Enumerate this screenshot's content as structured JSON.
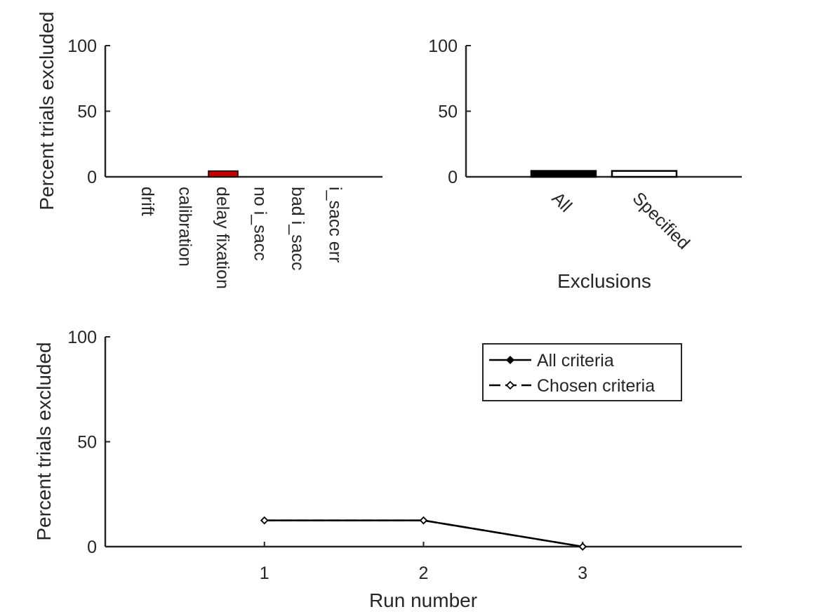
{
  "chart_data": [
    {
      "type": "bar",
      "ylabel": "Percent trials excluded",
      "xlabel": "",
      "ylim": [
        0,
        100
      ],
      "yticks": [
        "0",
        "50",
        "100"
      ],
      "categories": [
        "drift",
        "calibration",
        "delay fixation",
        "no i_sacc",
        "bad i_sacc",
        "i_sacc err"
      ],
      "values": [
        0,
        0,
        4.5,
        0,
        0,
        0
      ],
      "bar_color": "#c00000"
    },
    {
      "type": "bar",
      "xlabel": "Exclusions",
      "ylabel": "",
      "ylim": [
        0,
        100
      ],
      "yticks": [
        "0",
        "50",
        "100"
      ],
      "categories": [
        "All",
        "Specified"
      ],
      "values": [
        4.5,
        4.5
      ],
      "bar_fills": [
        "#000000",
        "#ffffff"
      ]
    },
    {
      "type": "line",
      "xlabel": "Run number",
      "ylabel": "Percent trials excluded",
      "ylim": [
        0,
        100
      ],
      "xlim": [
        0,
        4
      ],
      "yticks": [
        "0",
        "50",
        "100"
      ],
      "x": [
        1,
        2,
        3
      ],
      "xticks": [
        "1",
        "2",
        "3"
      ],
      "legend_position": "top-right",
      "series": [
        {
          "name": "All criteria",
          "values": [
            12.5,
            12.5,
            0
          ],
          "marker": "filled-diamond",
          "color": "#000000"
        },
        {
          "name": "Chosen criteria",
          "values": [
            12.5,
            12.5,
            0
          ],
          "marker": "open-diamond",
          "color": "#000000"
        }
      ]
    }
  ]
}
